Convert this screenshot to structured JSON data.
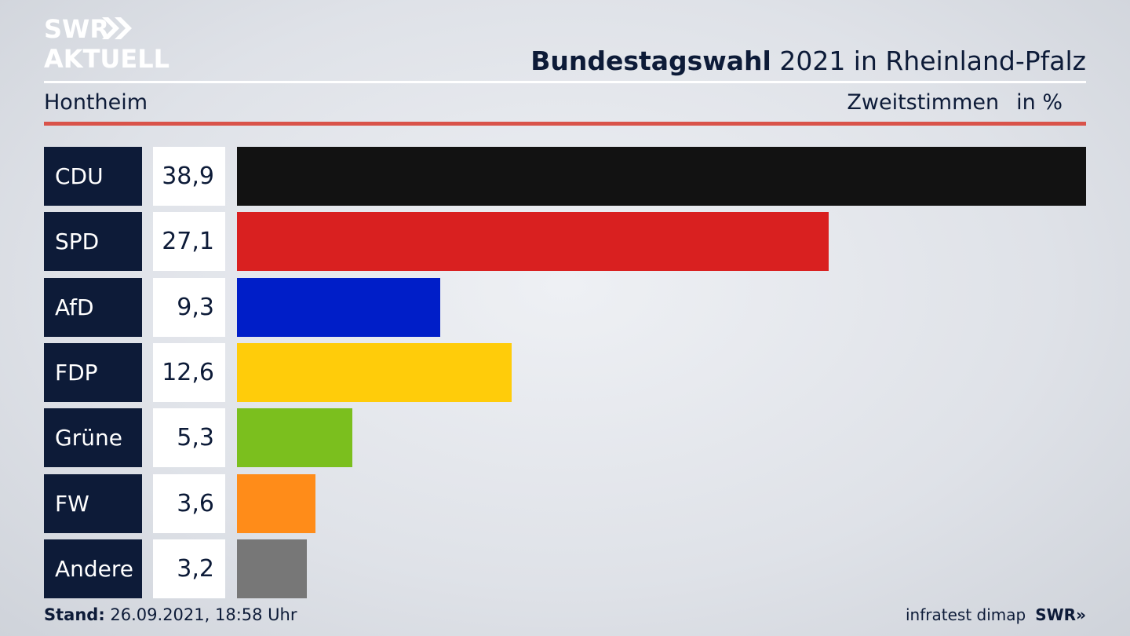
{
  "brand": {
    "logo_line1": "SWR",
    "logo_line2": "AKTUELL",
    "footer_logo": "SWR"
  },
  "header": {
    "title_bold": "Bundestagswahl",
    "title_rest": " 2021 in Rheinland-Pfalz",
    "location": "Hontheim",
    "vote_type": "Zweitstimmen",
    "unit": "in %"
  },
  "footer": {
    "stand_label": "Stand:",
    "stand_value": " 26.09.2021, 18:58 Uhr",
    "source": "infratest dimap"
  },
  "chart_data": {
    "type": "bar",
    "orientation": "horizontal",
    "categories": [
      "CDU",
      "SPD",
      "AfD",
      "FDP",
      "Grüne",
      "FW",
      "Andere"
    ],
    "values": [
      38.9,
      27.1,
      9.3,
      12.6,
      5.3,
      3.6,
      3.2
    ],
    "value_labels": [
      "38,9",
      "27,1",
      "9,3",
      "12,6",
      "5,3",
      "3,6",
      "3,2"
    ],
    "colors": [
      "#121212",
      "#d92020",
      "#001ec8",
      "#ffcc0a",
      "#7bbf1e",
      "#ff8c19",
      "#777777"
    ],
    "xlim": [
      0,
      38.9
    ],
    "grid": false,
    "legend": "none"
  }
}
